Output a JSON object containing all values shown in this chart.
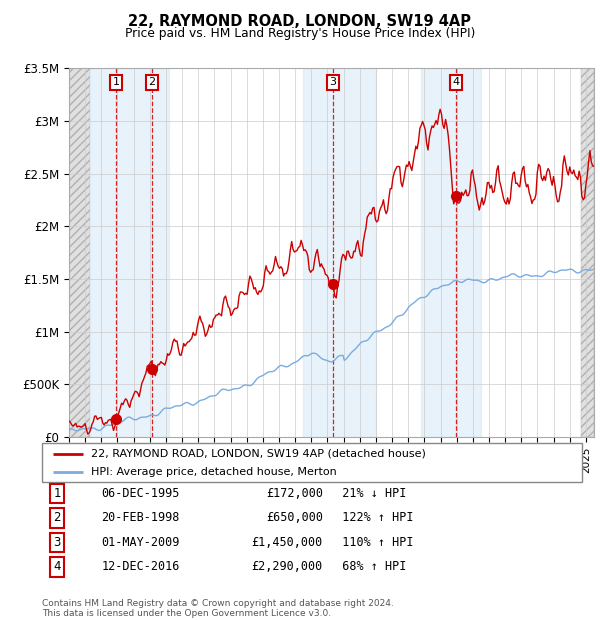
{
  "title": "22, RAYMOND ROAD, LONDON, SW19 4AP",
  "subtitle": "Price paid vs. HM Land Registry's House Price Index (HPI)",
  "ylim": [
    0,
    3500000
  ],
  "yticks": [
    0,
    500000,
    1000000,
    1500000,
    2000000,
    2500000,
    3000000,
    3500000
  ],
  "ytick_labels": [
    "£0",
    "£500K",
    "£1M",
    "£1.5M",
    "£2M",
    "£2.5M",
    "£3M",
    "£3.5M"
  ],
  "xlim_start": 1993.0,
  "xlim_end": 2025.5,
  "sale_color": "#cc0000",
  "hpi_color": "#7aace0",
  "transactions": [
    {
      "num": 1,
      "date_str": "06-DEC-1995",
      "date_x": 1995.92,
      "price": 172000,
      "pct": "21%",
      "dir": "↓"
    },
    {
      "num": 2,
      "date_str": "20-FEB-1998",
      "date_x": 1998.13,
      "price": 650000,
      "pct": "122%",
      "dir": "↑"
    },
    {
      "num": 3,
      "date_str": "01-MAY-2009",
      "date_x": 2009.33,
      "price": 1450000,
      "pct": "110%",
      "dir": "↑"
    },
    {
      "num": 4,
      "date_str": "12-DEC-2016",
      "date_x": 2016.95,
      "price": 2290000,
      "pct": "68%",
      "dir": "↑"
    }
  ],
  "legend_label_sale": "22, RAYMOND ROAD, LONDON, SW19 4AP (detached house)",
  "legend_label_hpi": "HPI: Average price, detached house, Merton",
  "footnote": "Contains HM Land Registry data © Crown copyright and database right 2024.\nThis data is licensed under the Open Government Licence v3.0.",
  "hatch_color": "#d8d8d8",
  "grid_color": "#cccccc",
  "shaded_region_color": "#d8eaf8"
}
